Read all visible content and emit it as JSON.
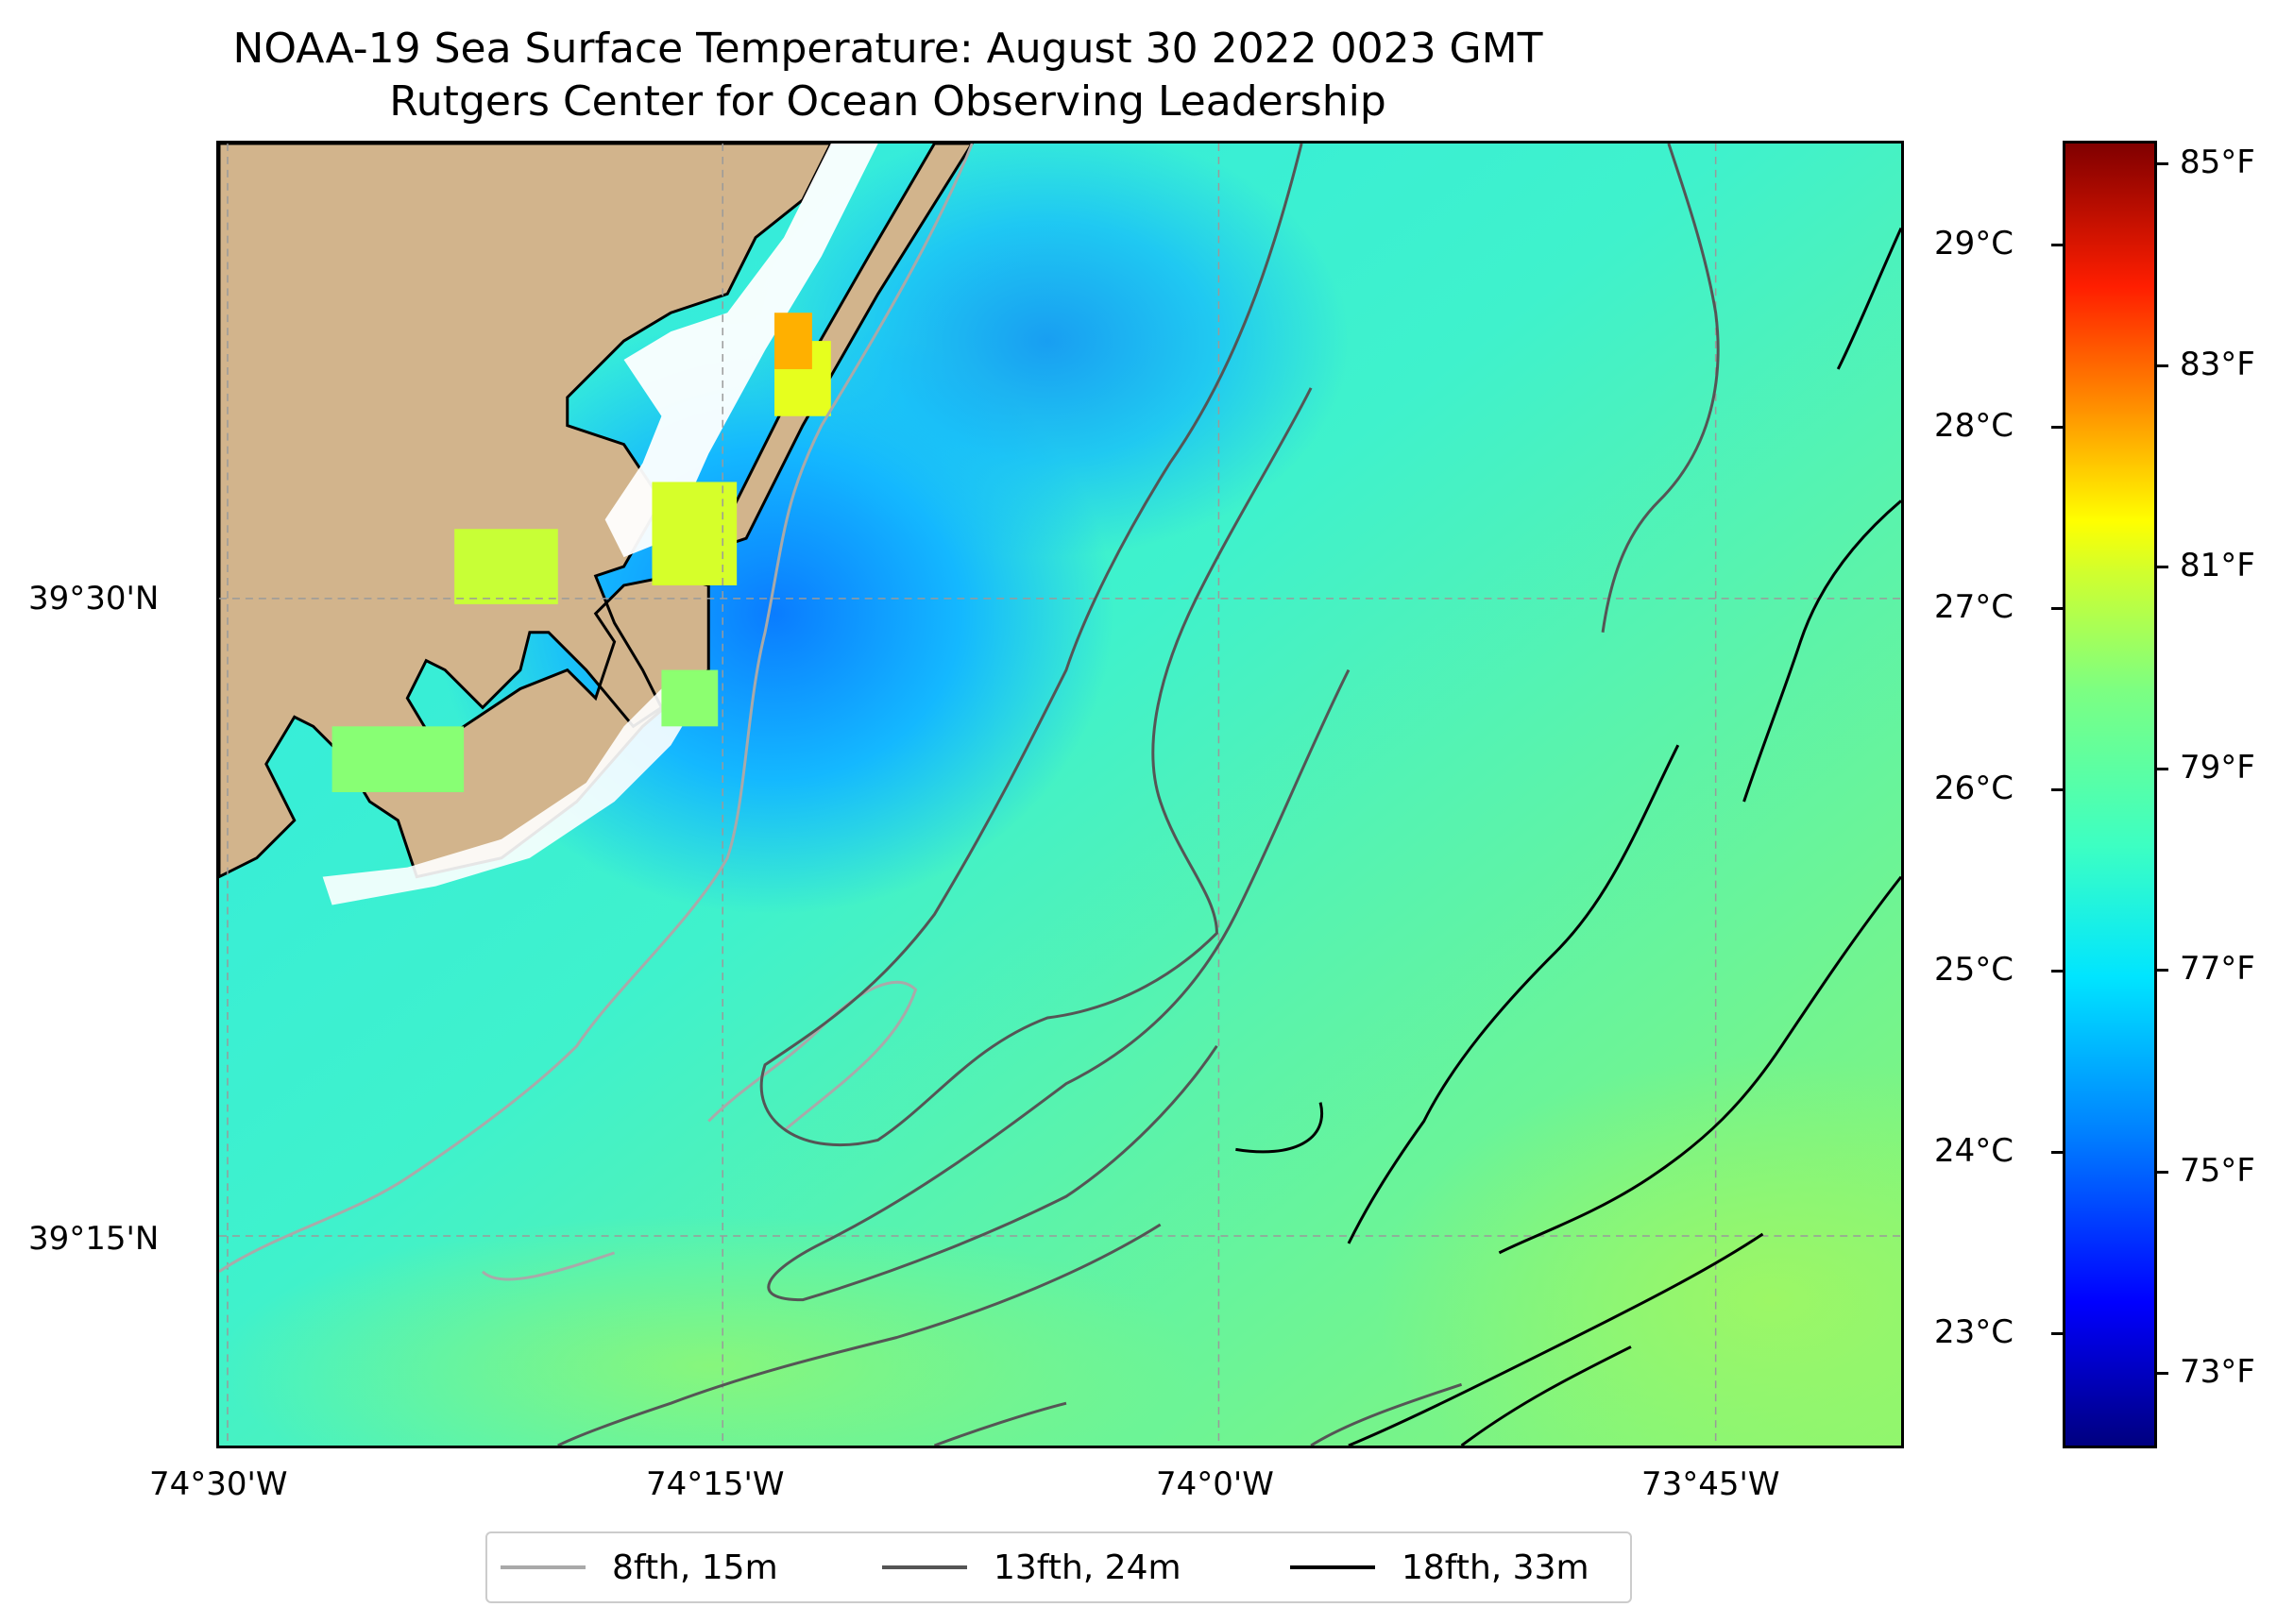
{
  "title": {
    "line1": "NOAA-19 Sea Surface Temperature: August 30 2022 0023 GMT",
    "line2": "Rutgers Center for Ocean Observing Leadership"
  },
  "map": {
    "land_color": "#d2b48c",
    "ocean_color_dominant": "#3ef3c8",
    "longitude_labels": [
      "74°30'W",
      "74°15'W",
      "74°0'W",
      "73°45'W"
    ],
    "latitude_labels": [
      "39°30'N",
      "39°15'N"
    ]
  },
  "colorbar": {
    "celsius_labels": [
      "29°C",
      "28°C",
      "27°C",
      "26°C",
      "25°C",
      "24°C",
      "23°C"
    ],
    "fahrenheit_labels": [
      "85°F",
      "83°F",
      "81°F",
      "79°F",
      "77°F",
      "75°F",
      "73°F"
    ],
    "colormap": "jet"
  },
  "legend": {
    "items": [
      {
        "label": "8fth, 15m",
        "color": "#a9a9a9"
      },
      {
        "label": "13fth, 24m",
        "color": "#555555"
      },
      {
        "label": "18fth, 33m",
        "color": "#000000"
      }
    ]
  }
}
